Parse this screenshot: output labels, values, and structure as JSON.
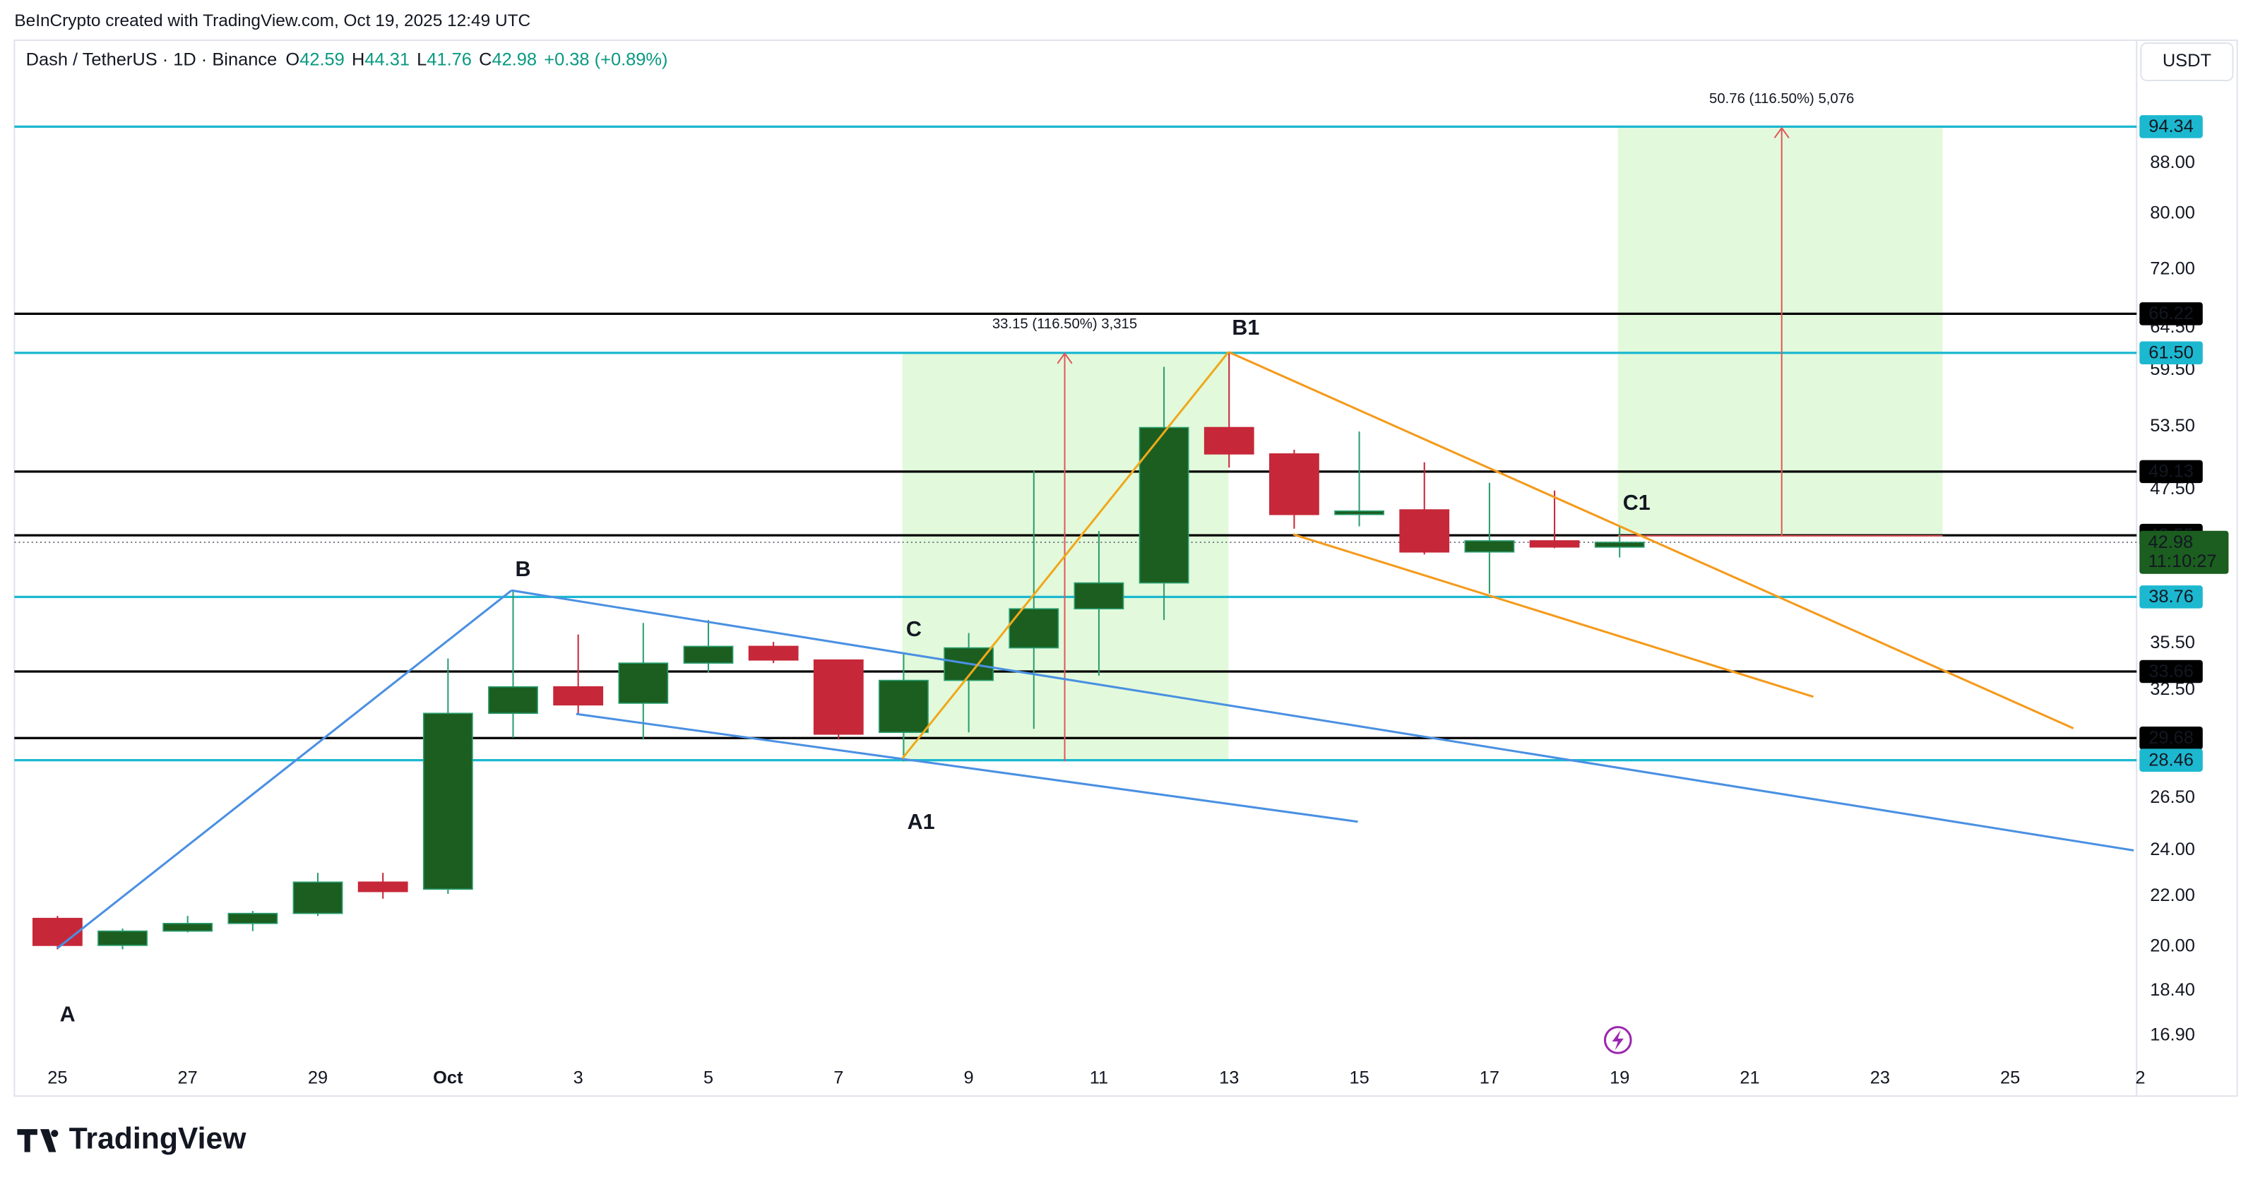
{
  "header": {
    "watermark": "BeInCrypto created with TradingView.com, Oct 19, 2025 12:49 UTC",
    "symbol": "Dash / TetherUS · 1D · Binance",
    "ohlc": [
      {
        "key": "O",
        "value": "42.59"
      },
      {
        "key": "H",
        "value": "44.31"
      },
      {
        "key": "L",
        "value": "41.76"
      },
      {
        "key": "C",
        "value": "42.98"
      }
    ],
    "change": "+0.38 (+0.89%)"
  },
  "currency": "USDT",
  "footer": "TradingView",
  "chart_data": {
    "type": "candlestick",
    "log_scale": true,
    "grid": false,
    "categories": [
      "25",
      null,
      "27",
      null,
      "29",
      null,
      "Oct",
      null,
      "3",
      null,
      "5",
      null,
      "7",
      null,
      "9",
      null,
      "11",
      null,
      "13",
      null,
      "15",
      null,
      "17",
      null,
      "19",
      null,
      "21",
      null,
      "23",
      null,
      "25",
      null,
      "2"
    ],
    "open": [
      21.1,
      20.05,
      20.6,
      20.9,
      21.3,
      22.6,
      22.3,
      31.1,
      32.7,
      31.7,
      34.2,
      35.3,
      34.4,
      30.0,
      33.1,
      35.2,
      37.9,
      39.8,
      53.4,
      50.8,
      45.3,
      45.7,
      42.2,
      43.1,
      42.59,
      null,
      null,
      null,
      null,
      null,
      null,
      null,
      null
    ],
    "high": [
      21.2,
      20.7,
      21.2,
      21.4,
      23.0,
      23.0,
      34.5,
      39.2,
      36.1,
      36.9,
      37.1,
      35.6,
      34.4,
      34.8,
      36.2,
      49.2,
      43.9,
      59.9,
      61.5,
      51.2,
      53.0,
      50.0,
      48.1,
      47.4,
      44.31,
      null,
      null,
      null,
      null,
      null,
      null,
      null,
      null
    ],
    "low": [
      19.9,
      19.9,
      20.55,
      20.6,
      21.2,
      21.9,
      22.1,
      29.7,
      31.0,
      29.6,
      33.6,
      34.2,
      29.6,
      28.4,
      30.0,
      30.2,
      33.4,
      37.1,
      49.5,
      44.1,
      44.3,
      42.0,
      39.0,
      42.5,
      41.76,
      null,
      null,
      null,
      null,
      null,
      null,
      null,
      null
    ],
    "close": [
      20.05,
      20.6,
      20.9,
      21.3,
      22.6,
      22.2,
      31.1,
      32.7,
      31.6,
      34.2,
      35.3,
      34.4,
      29.9,
      33.1,
      35.2,
      37.9,
      39.8,
      53.4,
      50.8,
      45.3,
      45.6,
      42.2,
      43.1,
      42.6,
      42.98,
      null,
      null,
      null,
      null,
      null,
      null,
      null,
      null
    ],
    "up_color": "#1b5e20",
    "up_wick": "#2a9d6f",
    "down_color": "#c62839",
    "down_wick": "#c62839",
    "ylim": [
      16.05,
      102.4
    ],
    "yticks": [
      {
        "value": 16.9,
        "label": "16.90"
      },
      {
        "value": 18.4,
        "label": "18.40"
      },
      {
        "value": 20,
        "label": "20.00"
      },
      {
        "value": 22,
        "label": "22.00"
      },
      {
        "value": 24,
        "label": "24.00"
      },
      {
        "value": 26.5,
        "label": "26.50"
      },
      {
        "value": 32.5,
        "label": "32.50"
      },
      {
        "value": 35.5,
        "label": "35.50"
      },
      {
        "value": 47.5,
        "label": "47.50"
      },
      {
        "value": 53.5,
        "label": "53.50"
      },
      {
        "value": 59.5,
        "label": "59.50"
      },
      {
        "value": 64.5,
        "label": "64.50"
      },
      {
        "value": 72,
        "label": "72.00"
      },
      {
        "value": 80,
        "label": "80.00"
      },
      {
        "value": 88,
        "label": "88.00"
      }
    ],
    "price_lines": [
      {
        "value": 94.34,
        "color": "#1cb8d0"
      },
      {
        "value": 66.22,
        "color": "#000000"
      },
      {
        "value": 61.5,
        "label": "61.50",
        "color": "#1cb8d0"
      },
      {
        "value": 49.13,
        "color": "#000000"
      },
      {
        "value": 43.55,
        "color": "#000000"
      },
      {
        "value": 38.76,
        "color": "#1cb8d0"
      },
      {
        "value": 33.66,
        "color": "#000000"
      },
      {
        "value": 29.68,
        "color": "#000000"
      },
      {
        "value": 28.46,
        "color": "#1cb8d0"
      }
    ],
    "last_price": {
      "value": 42.98,
      "countdown": "11:10:27",
      "color": "#1b5e20"
    },
    "annotations": [
      "A",
      "B",
      "C",
      "A1",
      "B1",
      "C1"
    ],
    "measurements": [
      "33.15 (116.50%) 3,315",
      "50.76 (116.50%) 5,076"
    ]
  }
}
